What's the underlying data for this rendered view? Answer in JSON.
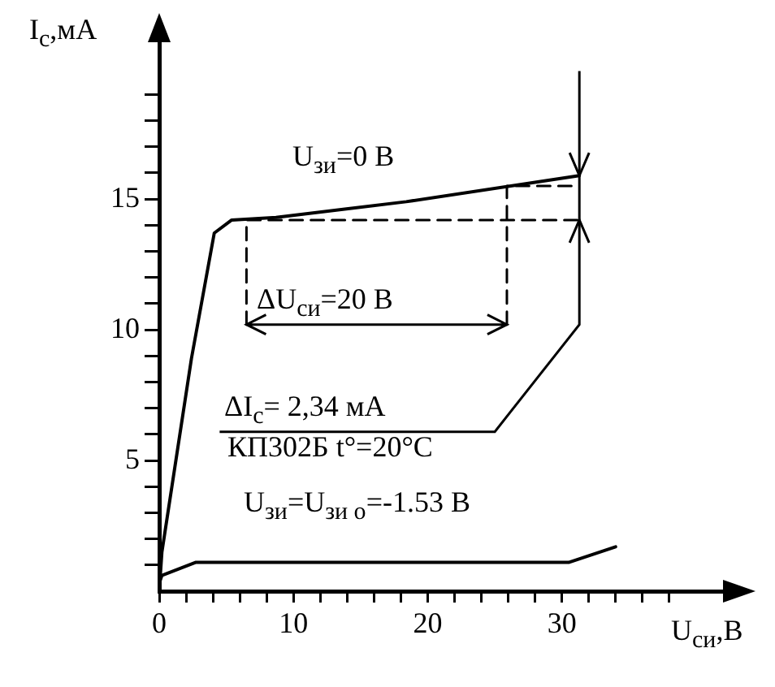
{
  "chart_data": {
    "type": "line",
    "xlabel": "U$_{си}$,В",
    "ylabel": "I$_{с}$,мА",
    "annotations": [
      "U$_{зи}$=0 В",
      "ΔU$_{си}$=20 В",
      "ΔI$_{с}$= 2,34 мА",
      "КП302Б  t°=20°C",
      "U$_{зи}$=U$_{зи о}$=-1.53 В"
    ],
    "series": [
      {
        "color": "#000000",
        "x": [
          0,
          0.2,
          2.4,
          4.1,
          5.4,
          8.7,
          18.4,
          31.3
        ],
        "values": [
          0,
          1.5,
          8.9,
          13.7,
          14.2,
          14.3,
          14.9,
          15.9
        ]
      },
      {
        "color": "#000000",
        "x": [
          0,
          0.2,
          2.7,
          30.5,
          34
        ],
        "values": [
          0.3,
          0.6,
          1.1,
          1.1,
          1.7
        ]
      },
      {
        "color": "#000000",
        "x": [
          6.5,
          6.5,
          31.3
        ],
        "values": [
          10.2,
          14.2,
          14.2
        ],
        "line_style": "dashed"
      },
      {
        "color": "#000000",
        "x": [
          25.9,
          25.9,
          31.3
        ],
        "values": [
          10.2,
          15.5,
          15.5
        ],
        "line_style": "dashed"
      }
    ],
    "xlim": [
      0,
      42
    ],
    "ylim": [
      0,
      21
    ],
    "xticks": [
      0,
      {
        "value": 2,
        "label": null
      },
      {
        "value": 4,
        "label": null
      },
      {
        "value": 6,
        "label": null
      },
      {
        "value": 8,
        "label": null
      },
      10,
      {
        "value": 12,
        "label": null
      },
      {
        "value": 14,
        "label": null
      },
      {
        "value": 16,
        "label": null
      },
      {
        "value": 18,
        "label": null
      },
      20,
      {
        "value": 22,
        "label": null
      },
      {
        "value": 24,
        "label": null
      },
      {
        "value": 26,
        "label": null
      },
      {
        "value": 28,
        "label": null
      },
      30,
      {
        "value": 32,
        "label": null
      },
      {
        "value": 34,
        "label": null
      },
      {
        "value": 36,
        "label": null
      },
      {
        "value": 38,
        "label": null
      }
    ],
    "yticks": [
      {
        "value": 1,
        "label": null
      },
      {
        "value": 2,
        "label": null
      },
      {
        "value": 3,
        "label": null
      },
      {
        "value": 4,
        "label": null
      },
      5,
      {
        "value": 6,
        "label": null
      },
      {
        "value": 7,
        "label": null
      },
      {
        "value": 8,
        "label": null
      },
      {
        "value": 9,
        "label": null
      },
      10,
      {
        "value": 11,
        "label": null
      },
      {
        "value": 12,
        "label": null
      },
      {
        "value": 13,
        "label": null
      },
      {
        "value": 14,
        "label": null
      },
      15,
      {
        "value": 16,
        "label": null
      },
      {
        "value": 17,
        "label": null
      },
      {
        "value": 18,
        "label": null
      },
      {
        "value": 19,
        "label": null
      }
    ],
    "grid": false,
    "legend": false,
    "marker": "none",
    "line_style": "solid"
  }
}
